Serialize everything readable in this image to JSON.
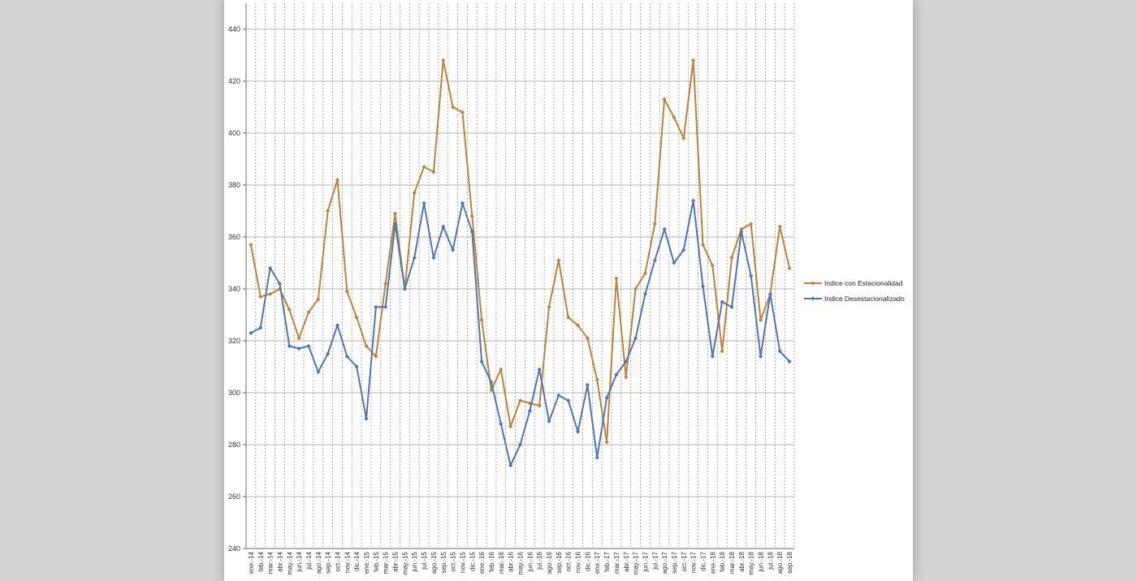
{
  "chart_data": {
    "type": "line",
    "title": "",
    "xlabel": "",
    "ylabel": "",
    "ylim": [
      240,
      440
    ],
    "yticks": [
      240,
      260,
      280,
      300,
      320,
      340,
      360,
      380,
      400,
      420,
      440
    ],
    "grid": true,
    "legend_position": "right",
    "categories": [
      "ene.-14",
      "feb.-14",
      "mar.-14",
      "abr.-14",
      "may.-14",
      "jun.-14",
      "jul.-14",
      "ago.-14",
      "sep.-14",
      "oct.-14",
      "nov.-14",
      "dic.-14",
      "ene.-15",
      "feb.-15",
      "mar.-15",
      "abr.-15",
      "may.-15",
      "jun.-15",
      "jul.-15",
      "ago.-15",
      "sep.-15",
      "oct.-15",
      "nov.-15",
      "dic.-15",
      "ene.-16",
      "feb.-16",
      "mar.-16",
      "abr.-16",
      "may.-16",
      "jun.-16",
      "jul.-16",
      "ago.-16",
      "sep.-16",
      "oct.-16",
      "nov.-16",
      "dic.-16",
      "ene.-17",
      "feb.-17",
      "mar.-17",
      "abr.-17",
      "may.-17",
      "jun.-17",
      "jul.-17",
      "ago.-17",
      "sep.-17",
      "oct.-17",
      "nov.-17",
      "dic.-17",
      "ene.-18",
      "feb.-18",
      "mar.-18",
      "abr.-18",
      "may.-18",
      "jun.-18",
      "jul.-18",
      "ago.-18",
      "sep.-18"
    ],
    "series": [
      {
        "name": "Indice con Estacionalidad",
        "color": "#c0813a",
        "values": [
          357,
          337,
          338,
          340,
          332,
          321,
          331,
          336,
          370,
          382,
          339,
          329,
          318,
          314,
          342,
          369,
          340,
          377,
          387,
          385,
          428,
          410,
          408,
          368,
          328,
          301,
          309,
          287,
          297,
          296,
          295,
          333,
          351,
          329,
          326,
          321,
          305,
          281,
          344,
          306,
          340,
          346,
          365,
          413,
          406,
          398,
          428,
          357,
          349,
          316,
          352,
          363,
          365,
          328,
          338,
          364,
          348
        ]
      },
      {
        "name": "Indice Desestacionalizado",
        "color": "#4f76b4",
        "values": [
          323,
          325,
          348,
          342,
          318,
          317,
          318,
          308,
          315,
          326,
          314,
          310,
          290,
          333,
          333,
          365,
          340,
          352,
          373,
          352,
          364,
          355,
          373,
          362,
          312,
          304,
          288,
          272,
          280,
          293,
          309,
          289,
          299,
          297,
          285,
          303,
          275,
          298,
          307,
          312,
          321,
          338,
          351,
          363,
          350,
          355,
          374,
          341,
          314,
          335,
          333,
          362,
          345,
          314,
          338,
          316,
          312
        ]
      }
    ]
  }
}
